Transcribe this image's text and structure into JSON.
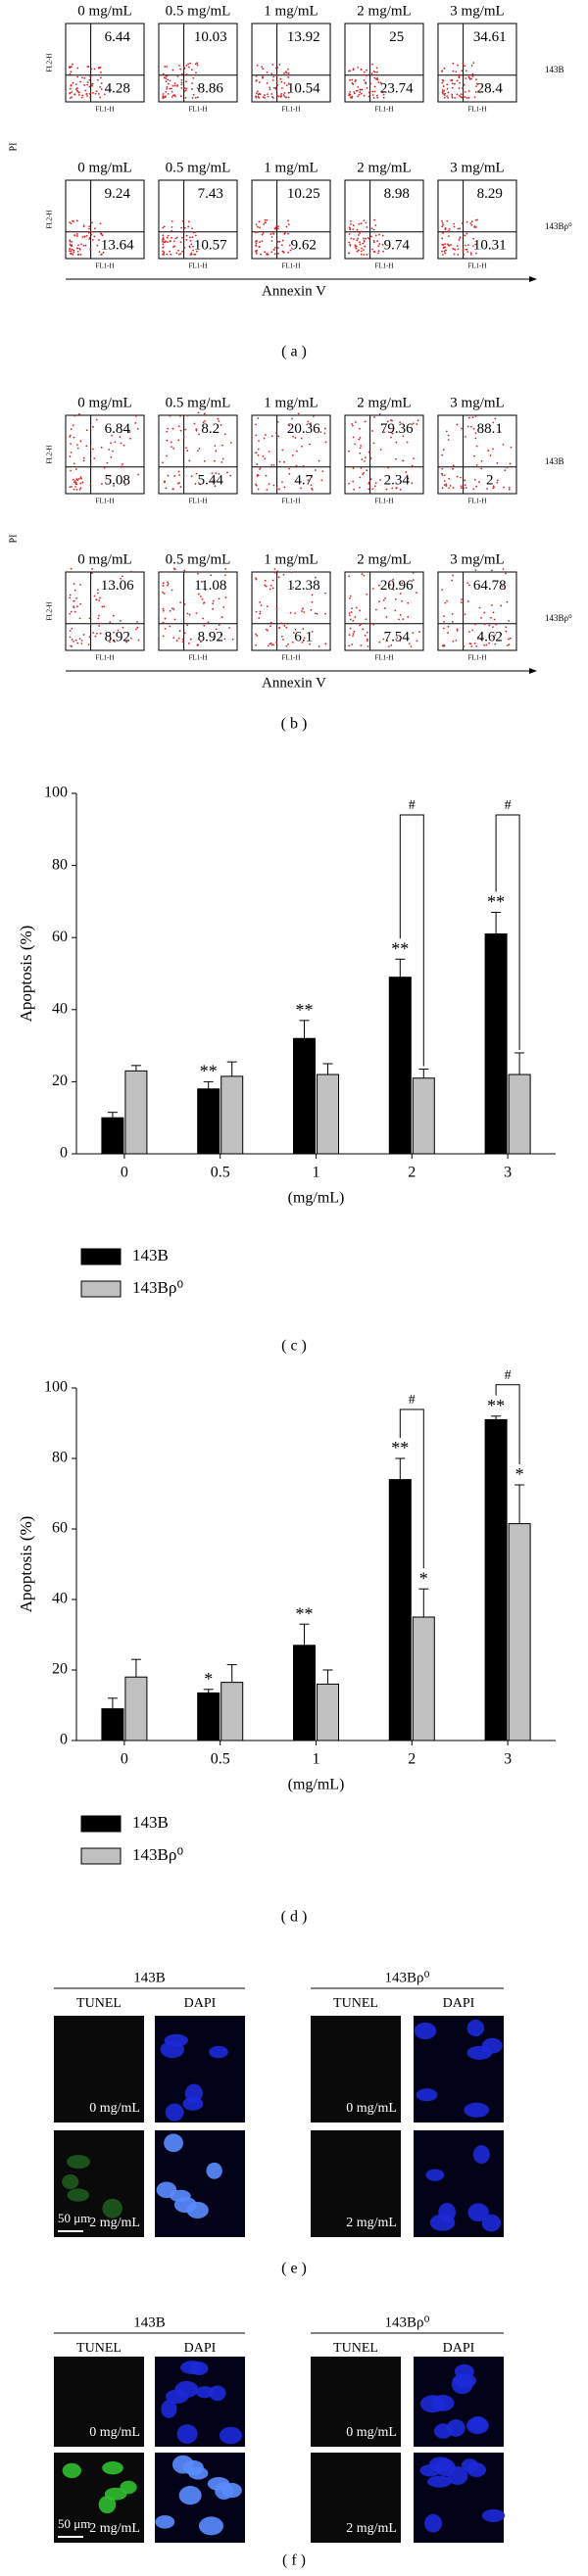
{
  "flow_panels": [
    {
      "caption": "( a )",
      "concentrations": [
        "0 mg/mL",
        "0.5 mg/mL",
        "1 mg/mL",
        "2 mg/mL",
        "3 mg/mL"
      ],
      "x_channel": "FL1-H",
      "y_channel": "FL2-H",
      "x_title": "Annexin V",
      "y_title": "PI",
      "rows": [
        {
          "cell_line": "143B",
          "upper_right": [
            6.44,
            10.03,
            13.92,
            25,
            34.61
          ],
          "lower_right": [
            4.28,
            8.86,
            10.54,
            23.74,
            28.4
          ]
        },
        {
          "cell_line": "143Bρ⁰",
          "upper_right": [
            9.24,
            7.43,
            10.25,
            8.98,
            8.29
          ],
          "lower_right": [
            13.64,
            10.57,
            9.62,
            9.74,
            10.31
          ]
        }
      ]
    },
    {
      "caption": "( b )",
      "concentrations": [
        "0 mg/mL",
        "0.5 mg/mL",
        "1 mg/mL",
        "2 mg/mL",
        "3 mg/mL"
      ],
      "x_channel": "FL1-H",
      "y_channel": "FL2-H",
      "x_title": "Annexin V",
      "y_title": "PI",
      "rows": [
        {
          "cell_line": "143B",
          "upper_right": [
            6.84,
            8.2,
            20.36,
            79.36,
            88.1
          ],
          "lower_right": [
            5.08,
            5.44,
            4.7,
            2.34,
            2
          ]
        },
        {
          "cell_line": "143Bρ⁰",
          "upper_right": [
            13.06,
            11.08,
            12.38,
            20.96,
            64.78
          ],
          "lower_right": [
            8.92,
            8.92,
            6.1,
            7.54,
            4.62
          ]
        }
      ]
    }
  ],
  "chart_data": [
    {
      "type": "bar",
      "caption": "( c )",
      "x_label": "(mg/mL)",
      "y_label": "Apoptosis (%)",
      "categories": [
        "0",
        "0.5",
        "1",
        "2",
        "3"
      ],
      "ylim": [
        0,
        100
      ],
      "yticks": [
        0,
        20,
        40,
        60,
        80,
        100
      ],
      "series": [
        {
          "name": "143B",
          "color": "#000000",
          "values": [
            10,
            18,
            32,
            49,
            61
          ],
          "errors": [
            1.5,
            2,
            5,
            5,
            6
          ],
          "markers": [
            null,
            "**",
            "**",
            "**",
            "**"
          ]
        },
        {
          "name": "143Bρ⁰",
          "color": "#c0c0c0",
          "values": [
            23,
            21.5,
            22,
            21,
            22
          ],
          "errors": [
            1.5,
            4,
            3,
            2.5,
            6
          ],
          "markers": [
            null,
            null,
            null,
            null,
            null
          ]
        }
      ],
      "significance": [
        {
          "category": "2",
          "label": "#"
        },
        {
          "category": "3",
          "label": "#"
        }
      ]
    },
    {
      "type": "bar",
      "caption": "( d )",
      "x_label": "(mg/mL)",
      "y_label": "Apoptosis (%)",
      "categories": [
        "0",
        "0.5",
        "1",
        "2",
        "3"
      ],
      "ylim": [
        0,
        100
      ],
      "yticks": [
        0,
        20,
        40,
        60,
        80,
        100
      ],
      "series": [
        {
          "name": "143B",
          "color": "#000000",
          "values": [
            9,
            13.5,
            27,
            74,
            91
          ],
          "errors": [
            3,
            1,
            6,
            6,
            1
          ],
          "markers": [
            null,
            "*",
            "**",
            "**",
            "**"
          ]
        },
        {
          "name": "143Bρ⁰",
          "color": "#c0c0c0",
          "values": [
            18,
            16.5,
            16,
            35,
            61.5
          ],
          "errors": [
            5,
            5,
            4,
            8,
            11
          ],
          "markers": [
            null,
            null,
            null,
            "*",
            "*"
          ]
        }
      ],
      "significance": [
        {
          "category": "2",
          "label": "#"
        },
        {
          "category": "3",
          "label": "#"
        }
      ]
    }
  ],
  "microscopy": [
    {
      "caption": "( e )",
      "cell_lines": [
        "143B",
        "143Bρ⁰"
      ],
      "stains": [
        "TUNEL",
        "DAPI"
      ],
      "doses": [
        "0 mg/mL",
        "2 mg/mL"
      ],
      "scale_bar": "50 μm"
    },
    {
      "caption": "( f )",
      "cell_lines": [
        "143B",
        "143Bρ⁰"
      ],
      "stains": [
        "TUNEL",
        "DAPI"
      ],
      "doses": [
        "0 mg/mL",
        "2 mg/mL"
      ],
      "scale_bar": "50 μm"
    }
  ]
}
